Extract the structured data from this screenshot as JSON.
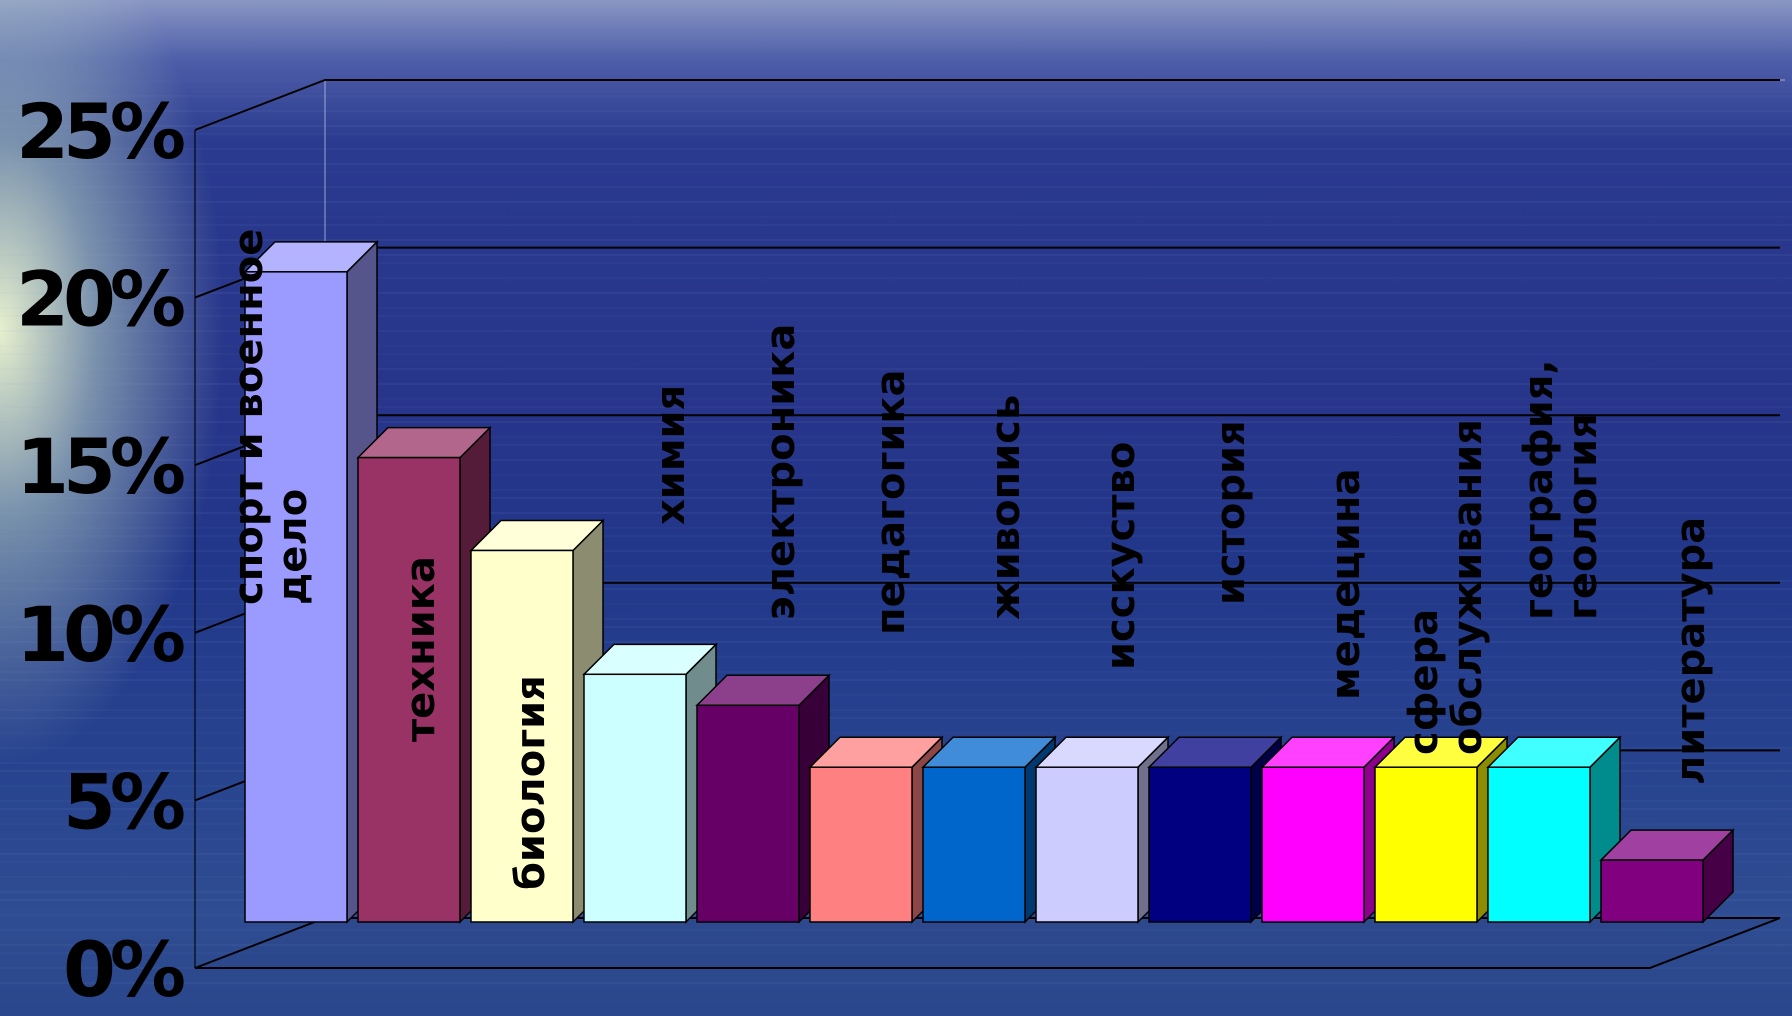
{
  "chart_data": {
    "type": "bar",
    "title": "",
    "xlabel": "",
    "ylabel": "",
    "ylim": [
      0,
      25
    ],
    "y_tick_labels": [
      "0%",
      "5%",
      "10%",
      "15%",
      "20%",
      "25%"
    ],
    "y_tick_values": [
      0,
      5,
      10,
      15,
      20,
      25
    ],
    "grid": true,
    "style": "3d-column",
    "categories": [
      "спорт и военное дело",
      "техника",
      "биология",
      "химия",
      "электроника",
      "педагогика",
      "живопись",
      "исскуство",
      "история",
      "медецина",
      "сфера обслуживания",
      "география, геология",
      "литература"
    ],
    "values": [
      21,
      15,
      12,
      8,
      7,
      5,
      5,
      5,
      5,
      5,
      5,
      5,
      2
    ],
    "colors": [
      "#9a9aff",
      "#993366",
      "#ffffcc",
      "#ccffff",
      "#660066",
      "#ff8080",
      "#0066cc",
      "#ccccff",
      "#000080",
      "#ff00ff",
      "#ffff00",
      "#00ffff",
      "#800080"
    ]
  }
}
